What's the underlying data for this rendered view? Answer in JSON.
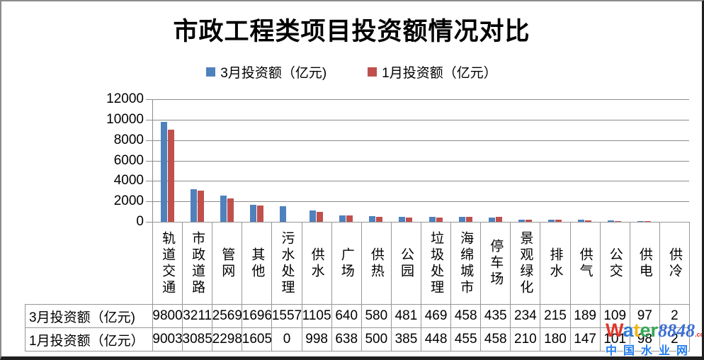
{
  "title": "市政工程类项目投资额情况对比",
  "chart_data": {
    "type": "bar",
    "title": "市政工程类项目投资额情况对比",
    "categories": [
      "轨道交通",
      "市政道路",
      "管网",
      "其他",
      "污水处理",
      "供水",
      "广场",
      "供热",
      "公园",
      "垃圾处理",
      "海绵城市",
      "停车场",
      "景观绿化",
      "排水",
      "供气",
      "公交",
      "供电",
      "供冷"
    ],
    "series": [
      {
        "name": "3月投资额（亿元)",
        "color": "#4F81BD",
        "values": [
          9800,
          3211,
          2569,
          1696,
          1557,
          1105,
          640,
          580,
          481,
          469,
          458,
          435,
          234,
          215,
          189,
          109,
          97,
          2
        ]
      },
      {
        "name": "1月投资额（亿元）",
        "color": "#C0504D",
        "values": [
          9003,
          3085,
          2298,
          1605,
          0,
          998,
          638,
          500,
          385,
          448,
          455,
          458,
          210,
          180,
          147,
          101,
          98,
          2
        ]
      }
    ],
    "ylim": [
      0,
      12000
    ],
    "ytick_step": 2000,
    "grid": true,
    "legend_position": "top",
    "data_table_shown": true
  },
  "watermark": {
    "letters": [
      {
        "ch": "W",
        "color": "#e2352a"
      },
      {
        "ch": "a",
        "color": "#2e7cd6"
      },
      {
        "ch": "t",
        "color": "#f2b50f"
      },
      {
        "ch": "e",
        "color": "#35a853"
      },
      {
        "ch": "r",
        "color": "#35a853"
      }
    ],
    "suffix": "8848",
    "dotcom": ".com",
    "subtitle": "中国水业网"
  }
}
